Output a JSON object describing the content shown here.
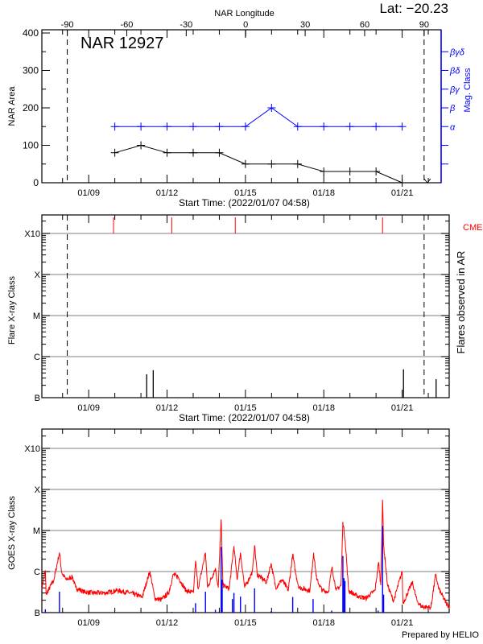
{
  "header": {
    "lat_label": "Lat: −20.23",
    "region_title": "NAR 12927",
    "footer": "Prepared by HELIO"
  },
  "colors": {
    "frame": "#000000",
    "grid": "#999999",
    "goes_long": "#ff0000",
    "goes_short": "#0000ff",
    "mag_class": "#0000ff",
    "cme": "#ff0000"
  },
  "x_axis": {
    "label": "Start Time: (2022/01/07 04:58)",
    "unit": "day of January 2022",
    "range": [
      7.207,
      22.8
    ],
    "ticks": [
      {
        "day": 9,
        "label": "01/09"
      },
      {
        "day": 12,
        "label": "01/12"
      },
      {
        "day": 15,
        "label": "01/15"
      },
      {
        "day": 18,
        "label": "01/18"
      },
      {
        "day": 21,
        "label": "01/21"
      }
    ],
    "limb_markers_day": [
      8.18,
      21.84
    ]
  },
  "chart_data": [
    {
      "type": "line",
      "title": "NAR 12927",
      "ylabel": "NAR Area",
      "y2label": "Mag. Class",
      "ylim": [
        0,
        400
      ],
      "yticks": [
        0,
        100,
        200,
        300,
        400
      ],
      "top_axis": {
        "label": "NAR Longitude",
        "limb_longitudes": [
          -90,
          90
        ],
        "ticks": [
          -90,
          -60,
          -30,
          0,
          30,
          60,
          90
        ]
      },
      "mag_class_ticks": [
        "",
        "",
        "α",
        "β",
        "βγ",
        "βδ",
        "βγδ"
      ],
      "x_day": [
        10,
        11,
        12,
        13,
        14,
        15,
        16,
        17,
        18,
        19,
        20,
        21
      ],
      "series": [
        {
          "values": [
            80,
            100,
            80,
            80,
            80,
            50,
            50,
            50,
            30,
            30,
            30,
            0
          ]
        },
        {
          "values": [
            "α",
            "α",
            "α",
            "α",
            "α",
            "α",
            "β",
            "α",
            "α",
            "α",
            "α",
            "α"
          ]
        }
      ]
    },
    {
      "type": "bar",
      "ylabel": "Flare X-ray Class",
      "y2label": "Flares observed in AR",
      "cme_label": "CMEs",
      "y_scale": "log",
      "ylim_log10_flux": [
        -7,
        -2.55
      ],
      "y_class_ticks": [
        {
          "label": "B",
          "log10_flux": -7
        },
        {
          "label": "C",
          "log10_flux": -6
        },
        {
          "label": "M",
          "log10_flux": -5
        },
        {
          "label": "X",
          "log10_flux": -4
        },
        {
          "label": "X10",
          "log10_flux": -3
        }
      ],
      "grid": true,
      "flares": [
        {
          "day": 11.22,
          "log10_flux": -6.43
        },
        {
          "day": 11.47,
          "log10_flux": -6.33
        },
        {
          "day": 21.05,
          "log10_flux": -6.31
        },
        {
          "day": 22.3,
          "log10_flux": -6.55
        }
      ],
      "cmes_day": [
        9.95,
        12.18,
        14.61,
        20.25
      ]
    },
    {
      "type": "line",
      "ylabel": "GOES X-ray Class",
      "y_scale": "log",
      "ylim_log10_flux": [
        -7,
        -2.53
      ],
      "y_class_ticks": [
        {
          "label": "B",
          "log10_flux": -7
        },
        {
          "label": "C",
          "log10_flux": -6
        },
        {
          "label": "M",
          "log10_flux": -5
        },
        {
          "label": "X",
          "log10_flux": -4
        },
        {
          "label": "X10",
          "log10_flux": -3
        }
      ],
      "grid": true,
      "long_channel": {
        "day": [
          7.21,
          7.34,
          7.37,
          7.67,
          7.88,
          7.97,
          8.14,
          8.38,
          8.5,
          8.8,
          9.15,
          9.63,
          10.1,
          10.58,
          11.05,
          11.34,
          11.53,
          11.77,
          12.06,
          12.24,
          12.42,
          12.72,
          13.01,
          13.09,
          13.19,
          13.47,
          13.55,
          13.85,
          13.96,
          14.07,
          14.14,
          14.38,
          14.56,
          14.68,
          14.81,
          14.97,
          15.27,
          15.35,
          15.45,
          15.81,
          15.98,
          16.16,
          16.4,
          16.64,
          16.81,
          16.93,
          17.05,
          17.47,
          17.61,
          17.73,
          17.94,
          18.18,
          18.31,
          18.48,
          18.66,
          18.73,
          18.82,
          18.95,
          19.25,
          19.61,
          19.96,
          20.1,
          20.18,
          20.25,
          20.29,
          20.44,
          20.67,
          21.0,
          21.03,
          21.39,
          21.57,
          21.74,
          22.1,
          22.28,
          22.4,
          22.69,
          22.81
        ],
        "log10_flux": [
          -6.39,
          -5.97,
          -6.56,
          -6.2,
          -5.54,
          -6.03,
          -6.2,
          -6.13,
          -6.39,
          -6.49,
          -6.52,
          -6.52,
          -6.46,
          -6.52,
          -6.62,
          -5.99,
          -6.65,
          -6.69,
          -6.52,
          -6.07,
          -6.13,
          -6.46,
          -6.52,
          -5.74,
          -6.42,
          -5.54,
          -6.39,
          -5.93,
          -6.39,
          -4.73,
          -6.33,
          -6.42,
          -5.38,
          -6.2,
          -5.54,
          -6.39,
          -6.0,
          -5.36,
          -6.07,
          -6.26,
          -5.8,
          -6.39,
          -6.2,
          -6.46,
          -5.58,
          -6.07,
          -6.39,
          -6.46,
          -5.54,
          -6.2,
          -6.46,
          -6.49,
          -5.9,
          -6.46,
          -6.33,
          -4.79,
          -5.25,
          -6.46,
          -6.59,
          -6.65,
          -6.46,
          -5.77,
          -6.33,
          -4.25,
          -5.35,
          -6.33,
          -6.72,
          -6.0,
          -6.78,
          -6.26,
          -6.72,
          -6.85,
          -6.88,
          -6.07,
          -6.42,
          -6.78,
          -6.85
        ]
      },
      "short_channel": {
        "day": [
          7.34,
          7.88,
          12.18,
          13.09,
          13.47,
          13.85,
          14.07,
          14.11,
          14.5,
          14.56,
          14.81,
          15.35,
          15.98,
          16.81,
          17.59,
          18.3,
          18.73,
          18.77,
          18.81,
          20.08,
          20.25,
          20.29
        ],
        "log10_flux": [
          -6.92,
          -6.49,
          -6.98,
          -6.77,
          -6.49,
          -6.93,
          -5.4,
          -6.2,
          -6.67,
          -6.52,
          -6.61,
          -6.41,
          -6.97,
          -6.62,
          -6.67,
          -6.95,
          -5.62,
          -6.16,
          -6.23,
          -6.95,
          -4.89,
          -6.56
        ]
      }
    }
  ]
}
